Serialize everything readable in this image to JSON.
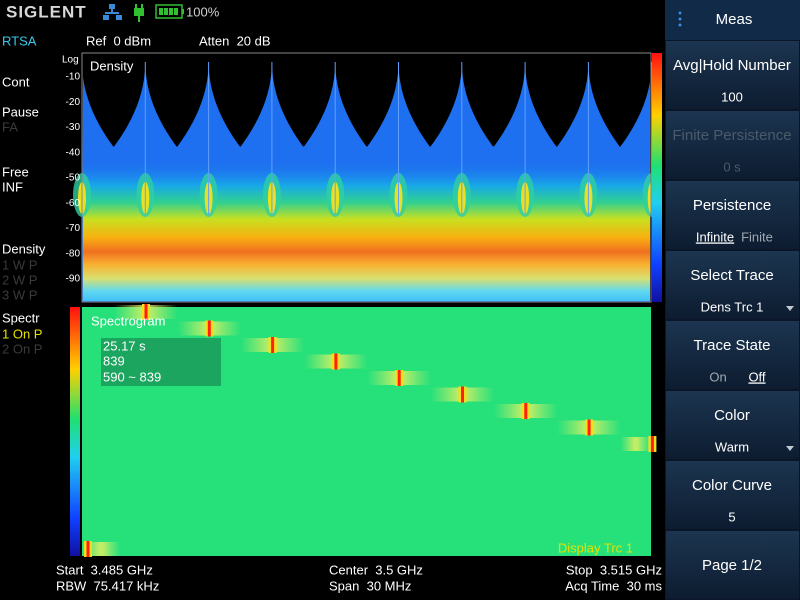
{
  "status_bar": {
    "brand": "SIGLENT",
    "battery": "100%"
  },
  "left_panel": {
    "mode": "RTSA",
    "sweep": "Cont",
    "pause": "Pause",
    "pause_sub": "FA",
    "trigger": "Free",
    "trigger_sub": "INF",
    "density": "Density",
    "density_traces": [
      "1 W P",
      "2 W P",
      "3 W P"
    ],
    "spectr": "Spectr",
    "spectr_traces": [
      "1 On P",
      "2 On P"
    ]
  },
  "header": {
    "ref": "Ref  0 dBm",
    "atten": "Atten  20 dB"
  },
  "density": {
    "label": "Density",
    "scale": "Log",
    "ticks": [
      "-10",
      "-20",
      "-30",
      "-40",
      "-50",
      "-60",
      "-70",
      "-80",
      "-90"
    ]
  },
  "spectrogram": {
    "label": "Spectrogram",
    "marker": [
      "25.17 s",
      "839",
      "590 ~ 839"
    ],
    "display": "Display Trc 1"
  },
  "footer": {
    "start": "Start  3.485 GHz",
    "rbw": "RBW  75.417 kHz",
    "center": "Center  3.5 GHz",
    "span": "Span  30 MHz",
    "stop": "Stop  3.515 GHz",
    "acq": "Acq Time  30 ms"
  },
  "menu": {
    "title": "Meas",
    "items": [
      {
        "label": "Avg|Hold Number",
        "value": "100"
      },
      {
        "label": "Finite Persistence",
        "value": "0 s"
      },
      {
        "label": "Persistence",
        "options": [
          "Infinite",
          "Finite"
        ],
        "selected": 0
      },
      {
        "label": "Select Trace",
        "value": "Dens Trc 1"
      },
      {
        "label": "Trace State",
        "options": [
          "On",
          "Off"
        ],
        "selected": 1
      },
      {
        "label": "Color",
        "value": "Warm"
      },
      {
        "label": "Color Curve",
        "value": "5"
      }
    ],
    "page": "Page 1/2"
  }
}
